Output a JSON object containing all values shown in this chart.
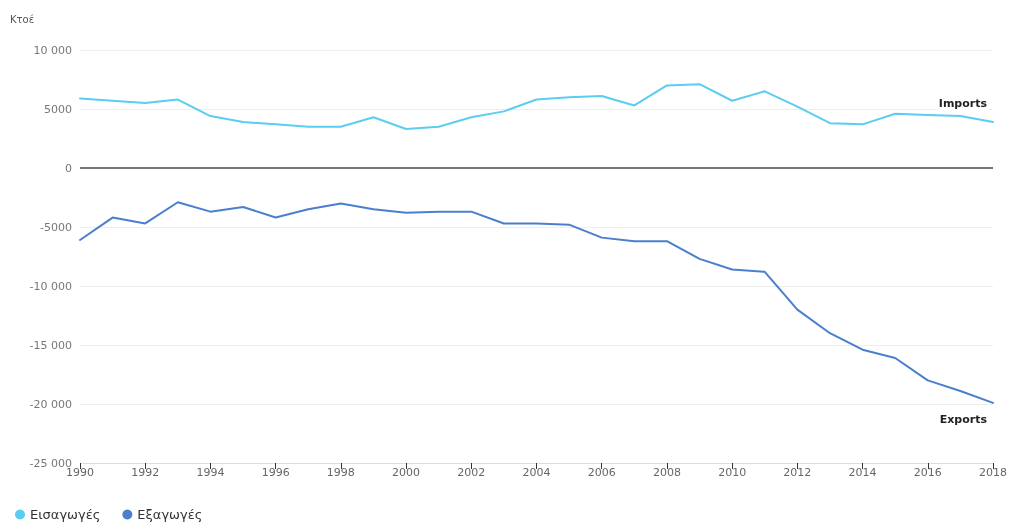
{
  "chart_data": {
    "type": "line",
    "ylabel": "Κτοέ",
    "x": [
      1990,
      1991,
      1992,
      1993,
      1994,
      1995,
      1996,
      1997,
      1998,
      1999,
      2000,
      2001,
      2002,
      2003,
      2004,
      2005,
      2006,
      2007,
      2008,
      2009,
      2010,
      2011,
      2012,
      2013,
      2014,
      2015,
      2016,
      2017,
      2018
    ],
    "series": [
      {
        "name": "Εισαγωγές",
        "color": "#5bcdf0",
        "values": [
          5900,
          5700,
          5500,
          5800,
          4400,
          3900,
          3700,
          3500,
          3500,
          4300,
          3300,
          3500,
          4300,
          4800,
          5800,
          6000,
          6100,
          5300,
          7000,
          7100,
          5700,
          6500,
          5200,
          3800,
          3700,
          4600,
          4500,
          4400,
          3900
        ]
      },
      {
        "name": "Εξαγωγές",
        "color": "#4a7fcf",
        "values": [
          -6100,
          -4200,
          -4700,
          -2900,
          -3700,
          -3300,
          -4200,
          -3500,
          -3000,
          -3500,
          -3800,
          -3700,
          -3700,
          -4700,
          -4700,
          -4800,
          -5900,
          -6200,
          -6200,
          -7700,
          -8600,
          -8800,
          -12000,
          -14000,
          -15400,
          -16100,
          -18000,
          -18900,
          -19900
        ]
      }
    ],
    "xlim": [
      1990,
      2018
    ],
    "xticks": [
      1990,
      1992,
      1994,
      1996,
      1998,
      2000,
      2002,
      2004,
      2006,
      2008,
      2010,
      2012,
      2014,
      2016,
      2018
    ],
    "ylim": [
      -25000,
      10000
    ],
    "yticks": [
      {
        "value": -25000,
        "label": "-25 000"
      },
      {
        "value": -20000,
        "label": "-20 000"
      },
      {
        "value": -15000,
        "label": "-15 000"
      },
      {
        "value": -10000,
        "label": "-10 000"
      },
      -5000,
      0,
      5000,
      {
        "value": 10000,
        "label": "10 000"
      }
    ],
    "annotations": [
      {
        "text": "Imports",
        "x": 2018,
        "y": 3900
      },
      {
        "text": "Exports",
        "x": 2018,
        "y": -19900
      }
    ],
    "grid": "y",
    "legend": "bottom left",
    "marker": "none",
    "line_style": "solid"
  }
}
